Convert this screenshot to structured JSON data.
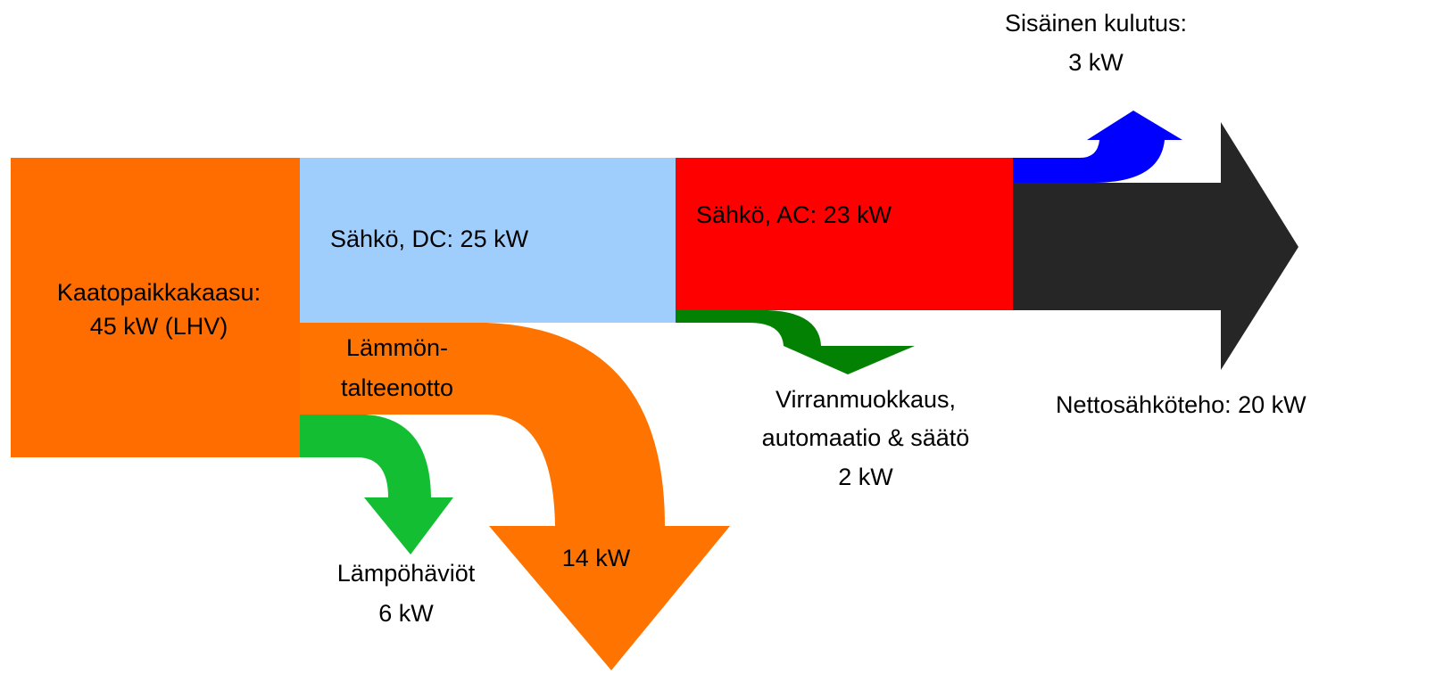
{
  "nodes": [
    {
      "label": [
        "Kaatopaikkakaasu:",
        "45 kW (LHV)"
      ]
    },
    {
      "label": [
        "Sähkö, DC: 25 kW"
      ]
    },
    {
      "label": [
        "Lämmön-",
        "talteenotto"
      ]
    },
    {
      "label": [
        "14 kW"
      ]
    },
    {
      "label": [
        "Lämpöhäviöt",
        "6 kW"
      ]
    },
    {
      "label": [
        "Sähkö, AC: 23 kW"
      ]
    },
    {
      "label": [
        "Virranmuokkaus,",
        "automaatio & säätö",
        "2 kW"
      ]
    },
    {
      "label": [
        "Sisäinen kulutus:",
        "3 kW"
      ]
    },
    {
      "label": [
        "Nettosähköteho: 20 kW"
      ]
    }
  ]
}
